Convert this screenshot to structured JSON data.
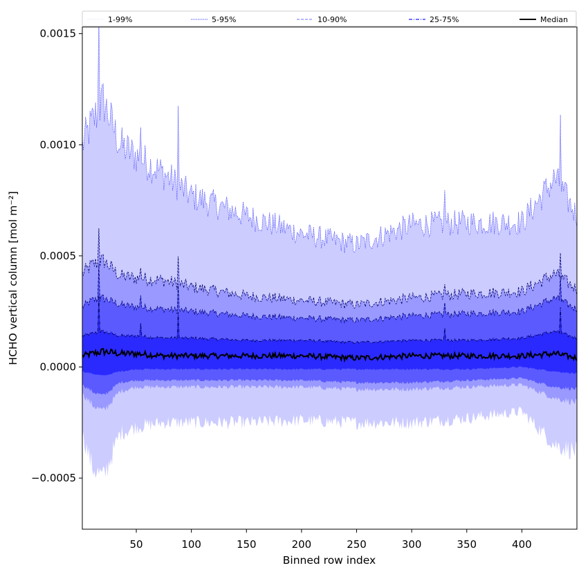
{
  "chart_data": {
    "type": "area",
    "xlabel": "Binned row index",
    "ylabel": "HCHO vertical column [mol m⁻²]",
    "xlim": [
      1,
      450
    ],
    "ylim": [
      -0.00073,
      0.00153
    ],
    "xticks": [
      50,
      100,
      150,
      200,
      250,
      300,
      350,
      400
    ],
    "xtick_labels": [
      "50",
      "100",
      "150",
      "200",
      "250",
      "300",
      "350",
      "400"
    ],
    "yticks": [
      -0.0005,
      0.0,
      0.0005,
      0.001,
      0.0015
    ],
    "ytick_labels": [
      "−0.0005",
      "0.0000",
      "0.0005",
      "0.0010",
      "0.0015"
    ],
    "legend_position": "top, above plot",
    "legend": [
      {
        "label": "1-99%",
        "color": "#ccccff",
        "style": "thin dotted"
      },
      {
        "label": "5-95%",
        "color": "#5a5aff",
        "style": "dotted"
      },
      {
        "label": "10-90%",
        "color": "#8b8bff",
        "style": "dashed"
      },
      {
        "label": "25-75%",
        "color": "#4343ff",
        "style": "dashdot"
      },
      {
        "label": "Median",
        "color": "#000000",
        "style": "solid"
      }
    ],
    "band_colors": [
      "#ccccff",
      "#9999ff",
      "#5a5aff",
      "#2a2aff"
    ],
    "anchor_x": [
      1,
      10,
      20,
      35,
      50,
      75,
      100,
      150,
      200,
      250,
      300,
      350,
      400,
      430,
      450
    ],
    "series": [
      {
        "name": "1-99%",
        "upper": [
          0.001,
          0.0011,
          0.0012,
          0.001,
          0.00095,
          0.00087,
          0.00077,
          0.00068,
          0.0006,
          0.00055,
          0.00064,
          0.00065,
          0.00065,
          0.00085,
          0.00068
        ],
        "lower": [
          -0.0003,
          -0.00045,
          -0.0005,
          -0.0003,
          -0.00027,
          -0.00025,
          -0.00025,
          -0.00025,
          -0.00024,
          -0.00025,
          -0.00025,
          -0.00023,
          -0.0002,
          -0.00035,
          -0.00038
        ]
      },
      {
        "name": "5-95%",
        "upper": [
          0.00042,
          0.00046,
          0.00048,
          0.00041,
          0.0004,
          0.00039,
          0.00036,
          0.00032,
          0.0003,
          0.00028,
          0.00031,
          0.00033,
          0.00034,
          0.00042,
          0.00035
        ],
        "lower": [
          -0.00012,
          -0.00017,
          -0.0002,
          -0.00011,
          -9e-05,
          -9e-05,
          -9e-05,
          -9e-05,
          -9e-05,
          -0.0001,
          -0.0001,
          -9e-05,
          -8e-05,
          -0.00014,
          -0.00016
        ]
      },
      {
        "name": "10-90%",
        "upper": [
          0.00027,
          0.0003,
          0.00031,
          0.00028,
          0.00027,
          0.00026,
          0.00025,
          0.00023,
          0.00022,
          0.00021,
          0.00023,
          0.00024,
          0.00025,
          0.00031,
          0.00026
        ],
        "lower": [
          -8e-05,
          -0.00011,
          -0.00013,
          -7e-05,
          -6e-05,
          -6e-05,
          -6e-05,
          -6e-05,
          -6e-05,
          -7e-05,
          -7e-05,
          -6e-05,
          -5e-05,
          -9e-05,
          -0.0001
        ]
      },
      {
        "name": "25-75%",
        "upper": [
          0.00014,
          0.00015,
          0.00016,
          0.00014,
          0.00014,
          0.00013,
          0.00013,
          0.00012,
          0.00012,
          0.00011,
          0.00012,
          0.00012,
          0.00013,
          0.00016,
          0.00013
        ],
        "lower": [
          -2e-05,
          -3e-05,
          -4e-05,
          -2e-05,
          -1e-05,
          -1e-05,
          -1e-05,
          -1e-05,
          -1e-05,
          -1e-05,
          -1e-05,
          -1e-05,
          0.0,
          -2e-05,
          -3e-05
        ]
      },
      {
        "name": "Median",
        "values": [
          5e-05,
          6e-05,
          7e-05,
          6e-05,
          6e-05,
          5e-05,
          5e-05,
          5e-05,
          5e-05,
          4e-05,
          5e-05,
          5e-05,
          5e-05,
          6e-05,
          4e-05
        ]
      }
    ],
    "spikes": [
      {
        "x": 16,
        "value": 0.00143
      },
      {
        "x": 54,
        "value": 0.00052
      },
      {
        "x": 88,
        "value": 0.00096
      },
      {
        "x": 330,
        "value": 0.00048
      },
      {
        "x": 435,
        "value": 0.00098
      }
    ]
  }
}
